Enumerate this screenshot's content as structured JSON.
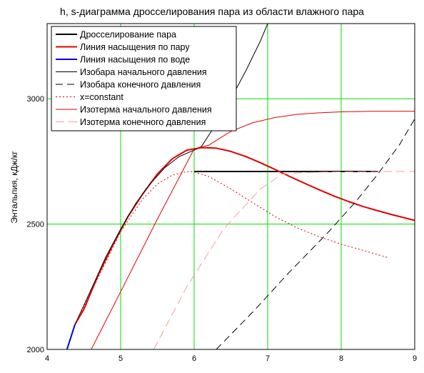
{
  "chart_data": {
    "type": "line",
    "title": "h, s-диаграмма дросселирования пара из области влажного пара",
    "xlabel": "",
    "ylabel": "Энтальпия, кДж/кг",
    "xlim": [
      4,
      9
    ],
    "ylim": [
      2000,
      3300
    ],
    "xticks": [
      4,
      5,
      6,
      7,
      8,
      9
    ],
    "yticks": [
      2000,
      2500,
      3000
    ],
    "grid": true,
    "grid_color": "#00dd00",
    "legend_position": "top-left",
    "series": [
      {
        "name": "Дросселирование пара",
        "color": "#000000",
        "width": 2,
        "dash": "",
        "x": [
          6.0,
          8.5
        ],
        "y": [
          2710,
          2710
        ]
      },
      {
        "name": "Линия насыщения по пару",
        "color": "#e00000",
        "width": 2,
        "x": [
          4.38,
          4.5,
          4.7,
          4.9,
          5.1,
          5.3,
          5.5,
          5.7,
          5.9,
          6.1,
          6.3,
          6.5,
          6.7,
          6.9,
          7.1,
          7.3,
          7.5,
          7.7,
          7.9,
          8.1,
          8.3,
          8.5,
          8.7,
          9.0
        ],
        "y": [
          2100,
          2160,
          2300,
          2420,
          2530,
          2620,
          2700,
          2760,
          2795,
          2805,
          2803,
          2790,
          2770,
          2745,
          2718,
          2690,
          2663,
          2637,
          2612,
          2590,
          2570,
          2553,
          2537,
          2515
        ]
      },
      {
        "name": "Линия насыщения по воде",
        "color": "#0000ee",
        "width": 2,
        "dash": "",
        "x": [
          4.27,
          4.38
        ],
        "y": [
          2000,
          2100
        ]
      },
      {
        "name": "Изобара начального давления",
        "color": "#000000",
        "width": 1,
        "dash": "",
        "x": [
          4.38,
          4.6,
          4.8,
          5.0,
          5.2,
          5.4,
          5.6,
          5.8,
          6.0,
          6.1,
          6.3,
          6.5,
          6.7,
          6.9,
          7.0
        ],
        "y": [
          2100,
          2240,
          2370,
          2480,
          2580,
          2660,
          2725,
          2770,
          2795,
          2810,
          2900,
          3000,
          3110,
          3230,
          3300
        ]
      },
      {
        "name": "Изобара конечного давления",
        "color": "#000000",
        "width": 1,
        "dash": "10,6",
        "x": [
          6.3,
          6.8,
          7.3,
          7.8,
          8.2,
          8.5,
          8.8,
          9.0
        ],
        "y": [
          2000,
          2150,
          2310,
          2460,
          2590,
          2700,
          2820,
          2920
        ]
      },
      {
        "name": "x=constant",
        "color": "#d00000",
        "width": 1,
        "dash": "2,3",
        "x": [
          4.38,
          4.7,
          5.0,
          5.3,
          5.5,
          5.7,
          5.9,
          6.0,
          6.2,
          6.5,
          6.8,
          7.1,
          7.4,
          7.7,
          8.0,
          8.3,
          8.65
        ],
        "y": [
          2100,
          2290,
          2470,
          2600,
          2660,
          2695,
          2710,
          2708,
          2690,
          2640,
          2585,
          2530,
          2485,
          2450,
          2420,
          2395,
          2365
        ]
      },
      {
        "name": "Изотерма начального давления",
        "color": "#e00000",
        "width": 1,
        "dash": "",
        "x": [
          4.6,
          5.0,
          5.5,
          6.0,
          6.2,
          6.5,
          6.8,
          7.1,
          7.4,
          7.7,
          8.0,
          8.4,
          9.0
        ],
        "y": [
          2000,
          2230,
          2520,
          2800,
          2815,
          2870,
          2905,
          2925,
          2938,
          2944,
          2948,
          2950,
          2950
        ]
      },
      {
        "name": "Изотерма конечного давления",
        "color": "#ff9999",
        "width": 1,
        "dash": "12,6",
        "x": [
          5.45,
          5.9,
          6.4,
          6.9,
          7.2,
          7.5,
          7.8,
          8.2,
          8.6,
          9.0
        ],
        "y": [
          2000,
          2250,
          2480,
          2640,
          2700,
          2706,
          2708,
          2709,
          2710,
          2710
        ]
      }
    ]
  }
}
